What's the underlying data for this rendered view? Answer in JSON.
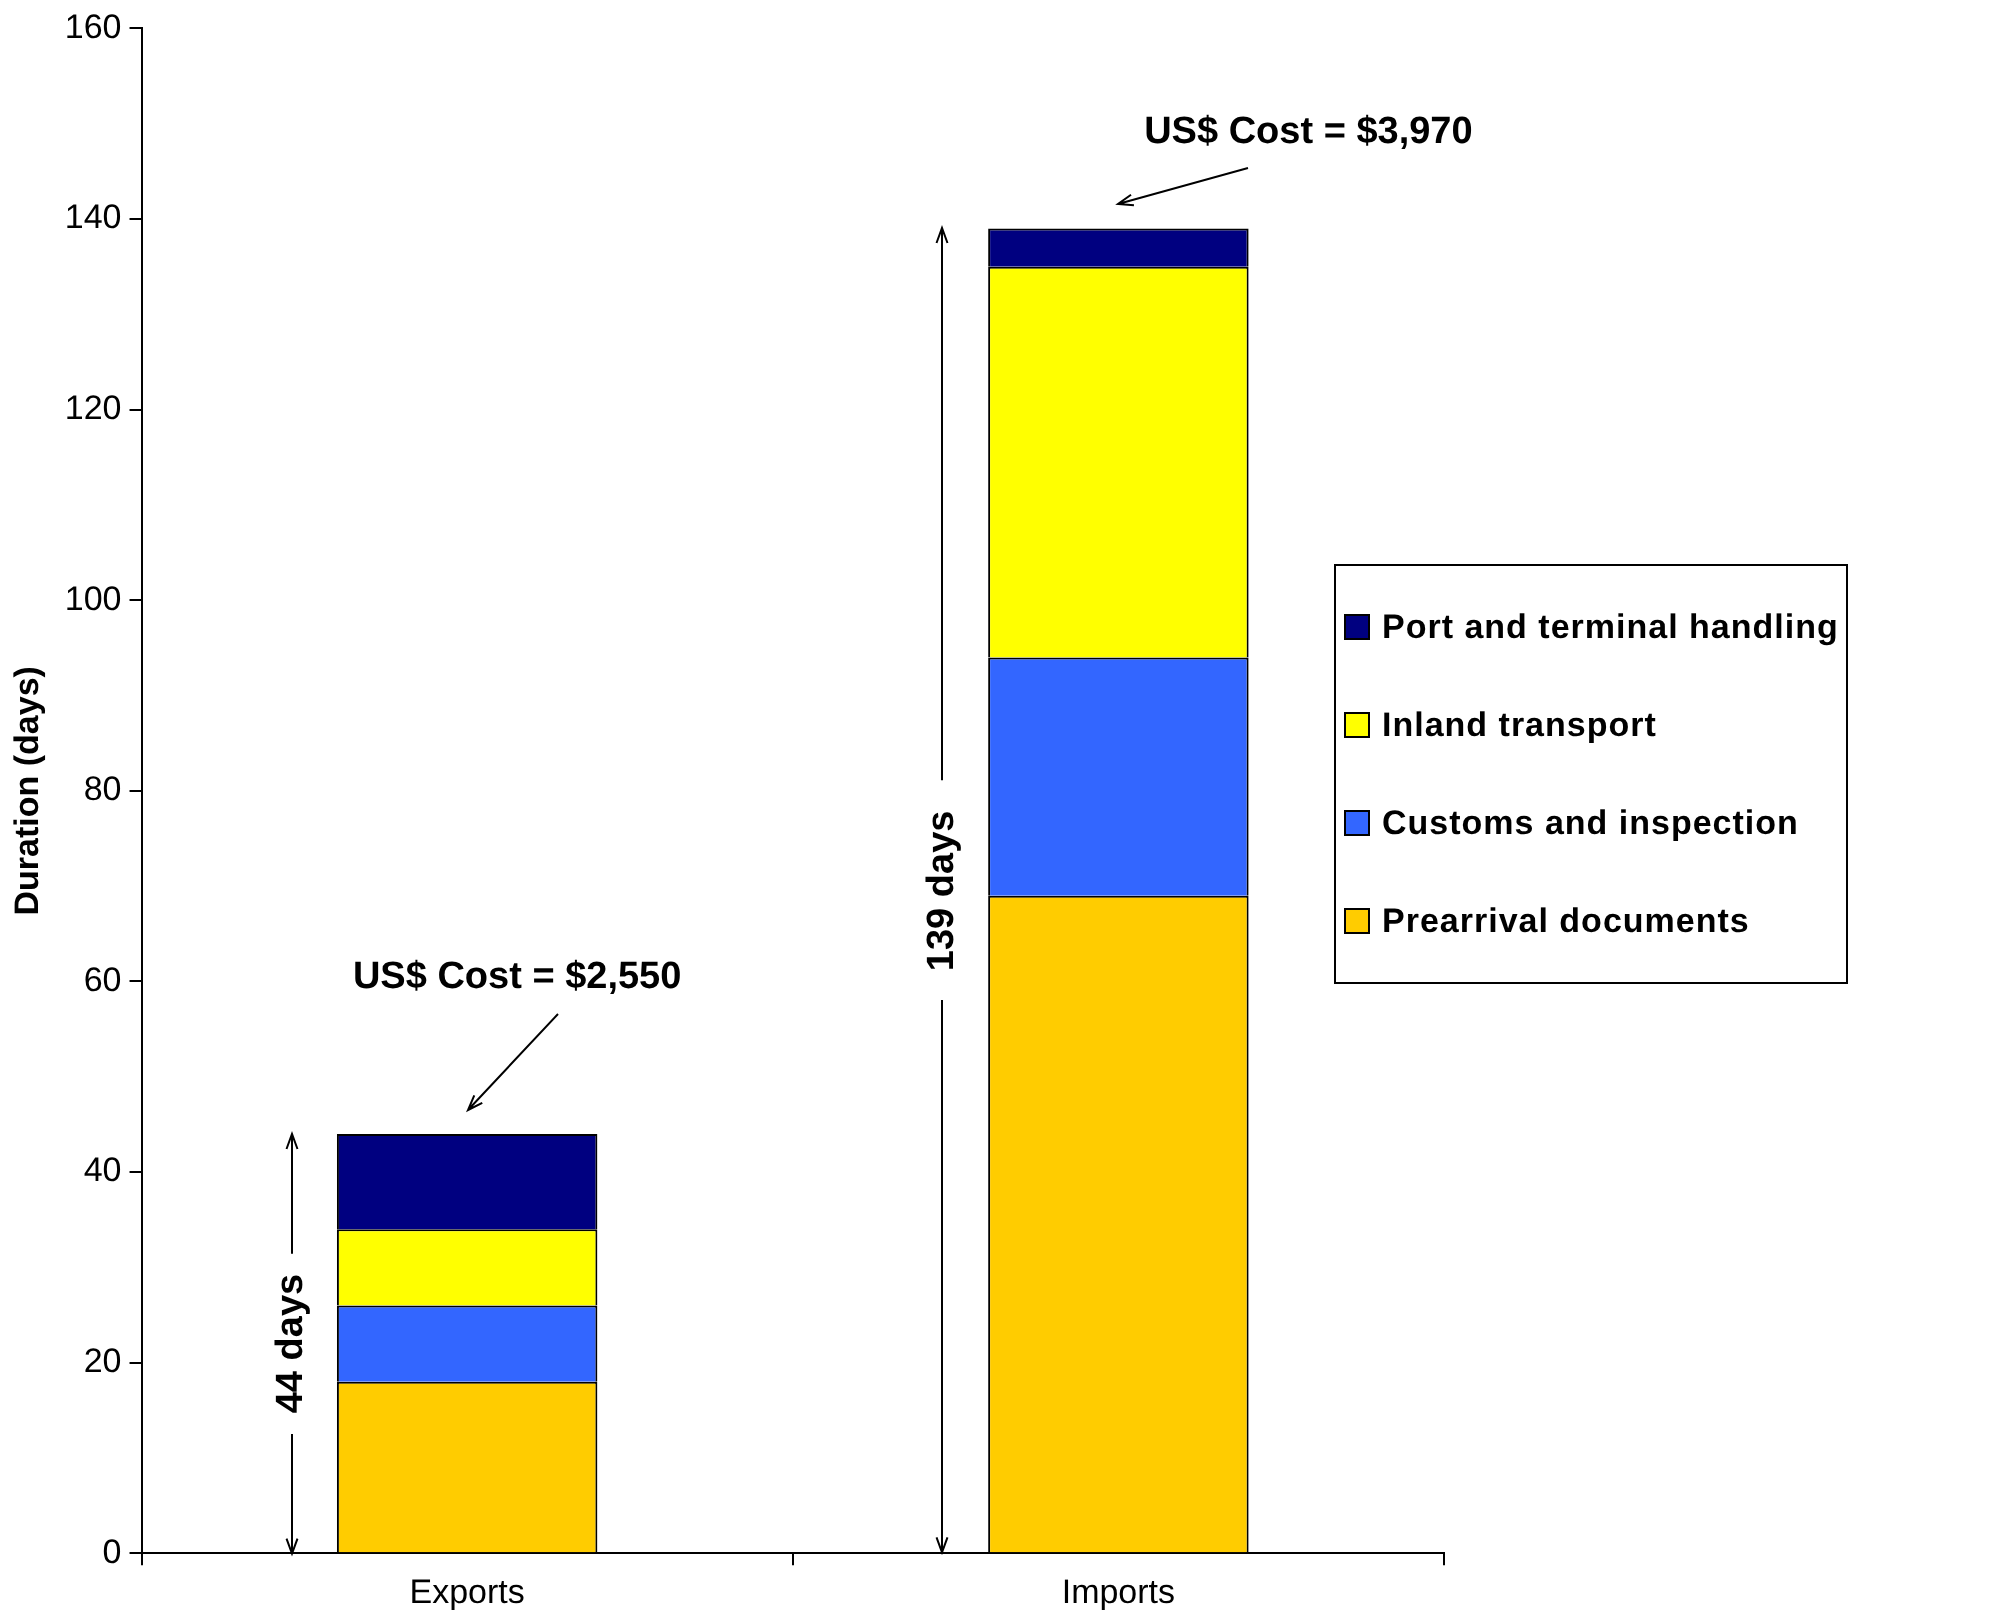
{
  "chart_data": {
    "type": "bar",
    "stacked": true,
    "ylabel": "Duration (days)",
    "categories": [
      "Exports",
      "Imports"
    ],
    "series": [
      {
        "name": "Prearrival documents",
        "color": "#ffcc00",
        "values": [
          18,
          69
        ]
      },
      {
        "name": "Customs and inspection",
        "color": "#3366ff",
        "values": [
          8,
          25
        ]
      },
      {
        "name": "Inland transport",
        "color": "#ffff00",
        "values": [
          8,
          41
        ]
      },
      {
        "name": "Port and terminal handling",
        "color": "#000080",
        "values": [
          10,
          4
        ]
      }
    ],
    "ylim": [
      0,
      160
    ],
    "yticks": [
      0,
      20,
      40,
      60,
      80,
      100,
      120,
      140,
      160
    ],
    "grid": false,
    "legend": "right",
    "annotations": [
      "US$ Cost = $2,550",
      "US$ Cost = $3,970",
      "44 days",
      "139 days"
    ]
  }
}
